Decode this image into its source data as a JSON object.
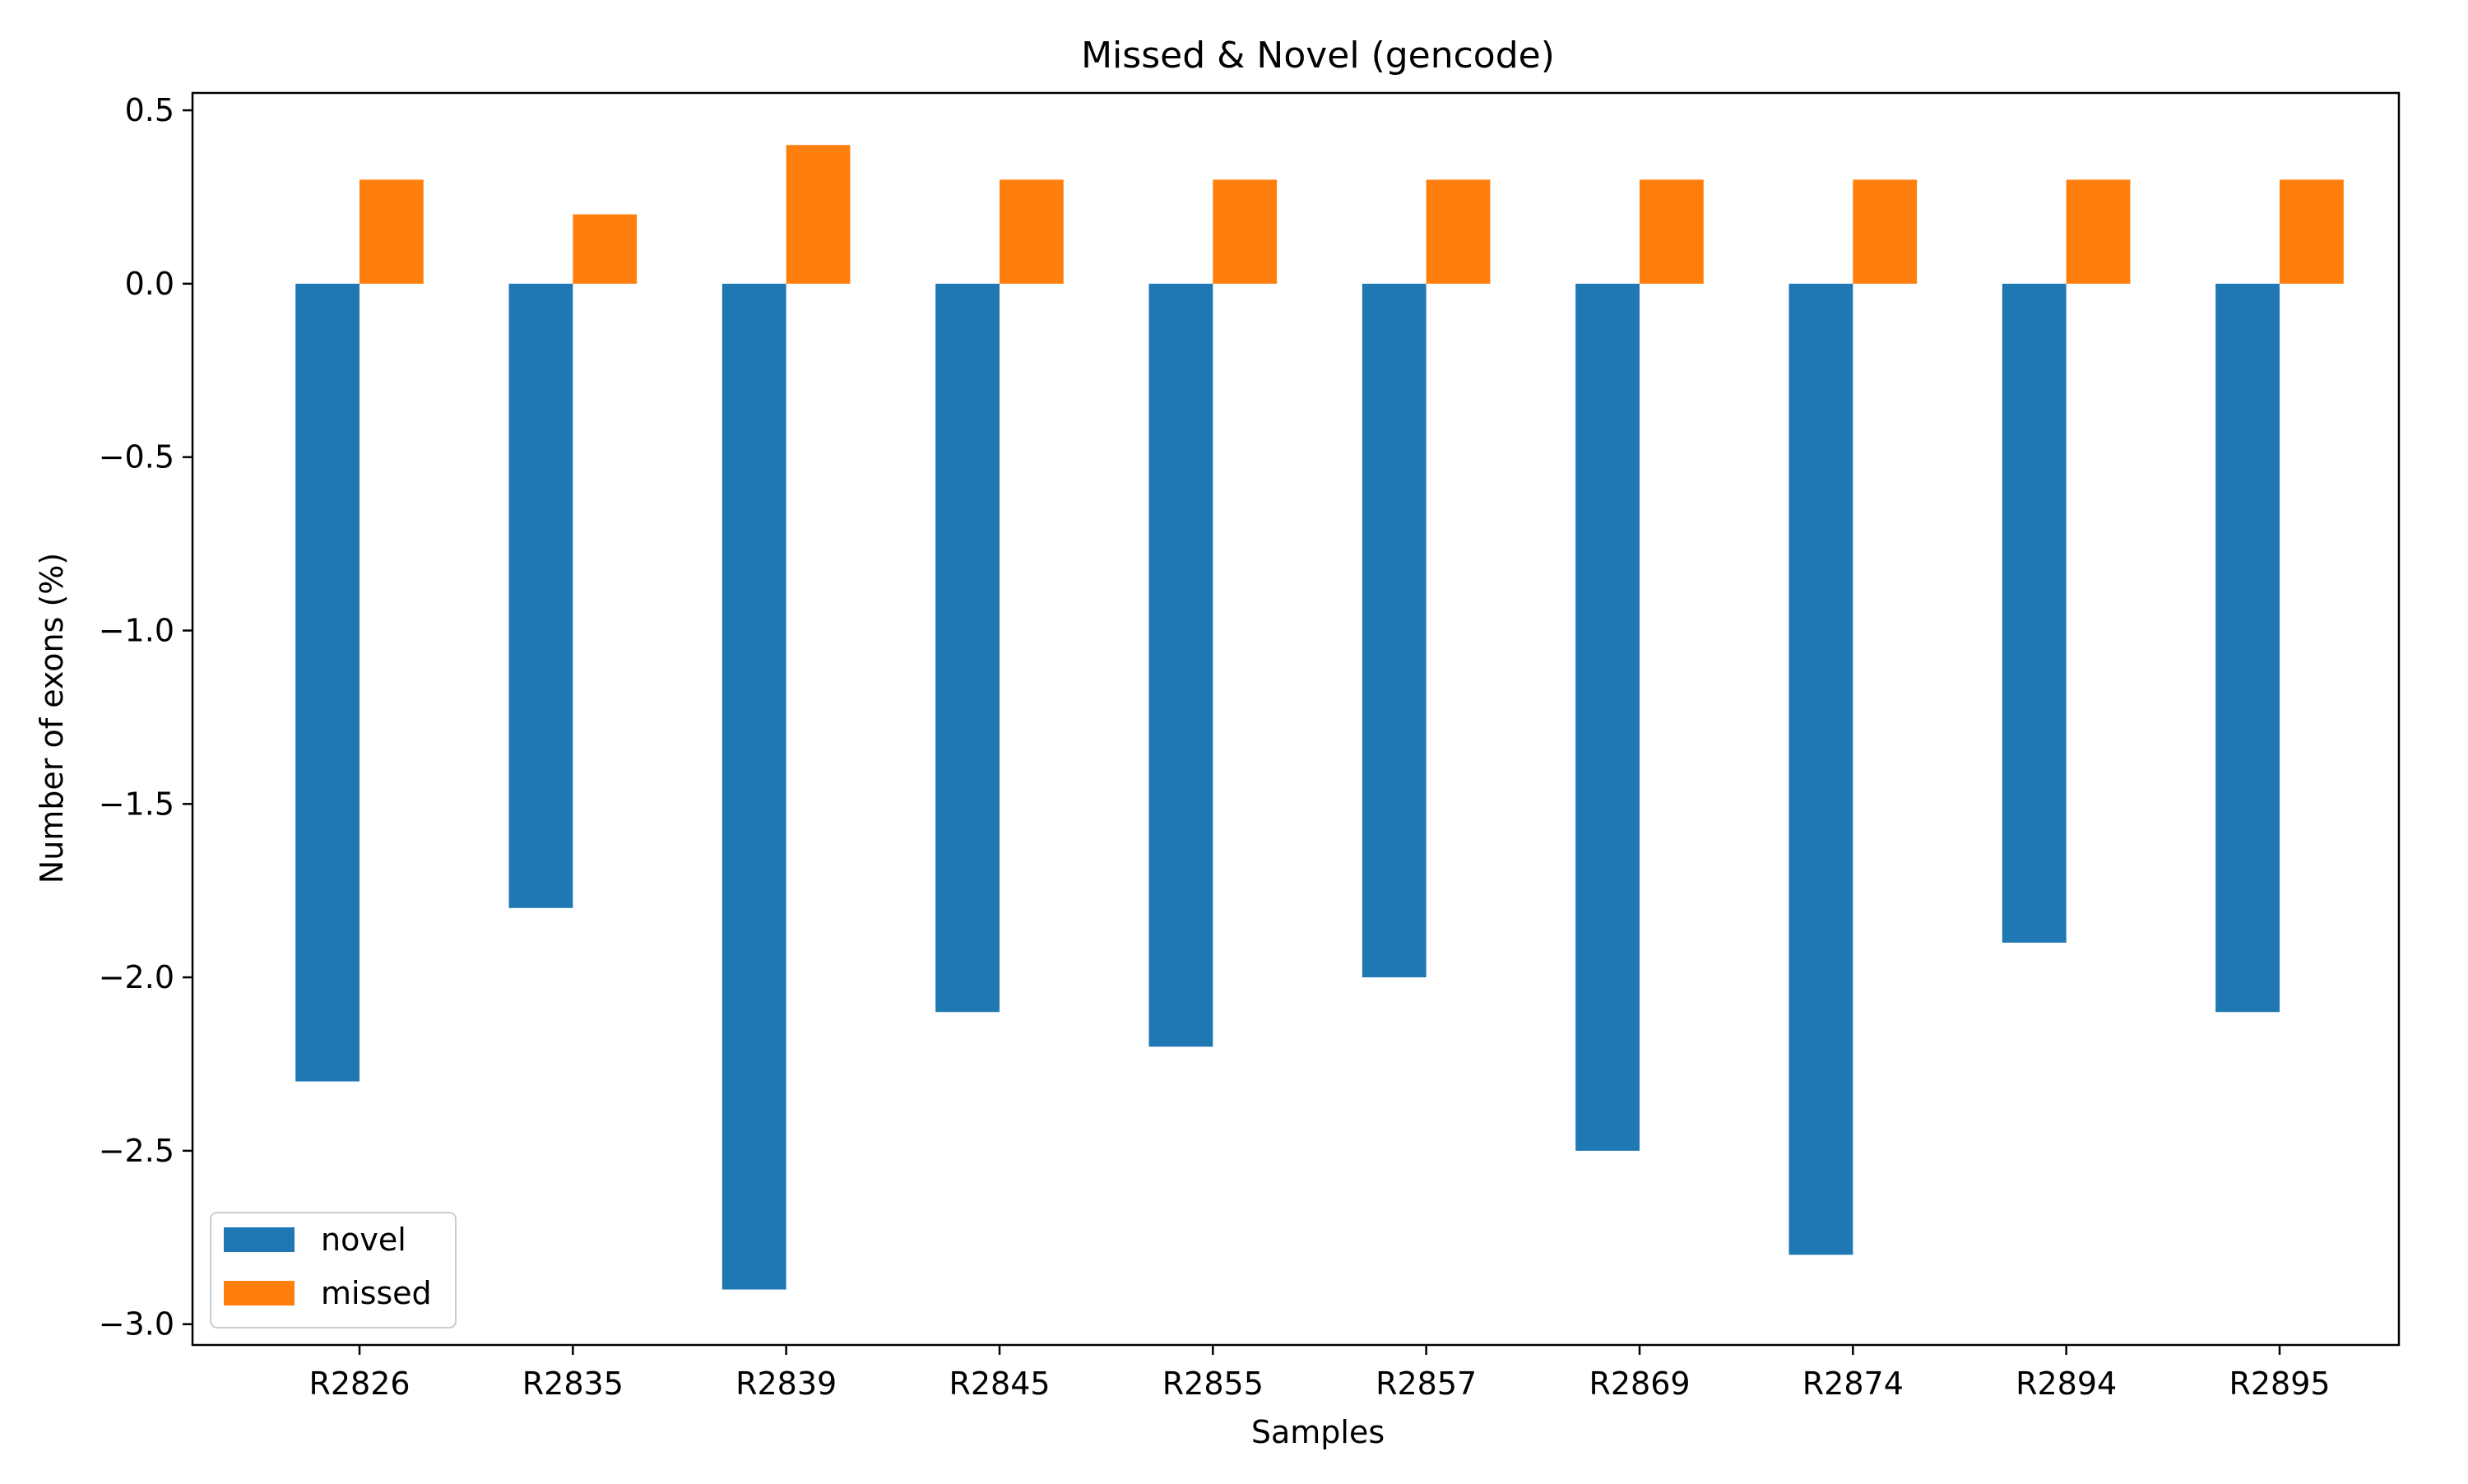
{
  "chart_data": {
    "type": "bar",
    "title": "Missed & Novel (gencode)",
    "xlabel": "Samples",
    "ylabel": "Number of exons (%)",
    "categories": [
      "R2826",
      "R2835",
      "R2839",
      "R2845",
      "R2855",
      "R2857",
      "R2869",
      "R2874",
      "R2894",
      "R2895"
    ],
    "series": [
      {
        "name": "novel",
        "color": "#1f77b4",
        "values": [
          -2.3,
          -1.8,
          -2.9,
          -2.1,
          -2.2,
          -2.0,
          -2.5,
          -2.8,
          -1.9,
          -2.1
        ]
      },
      {
        "name": "missed",
        "color": "#ff7f0e",
        "values": [
          0.3,
          0.2,
          0.4,
          0.3,
          0.3,
          0.3,
          0.3,
          0.3,
          0.3,
          0.3
        ]
      }
    ],
    "ylim": [
      -3.06,
      0.5
    ],
    "yticks": [
      0.5,
      0.0,
      -0.5,
      -1.0,
      -1.5,
      -2.0,
      -2.5,
      -3.0
    ],
    "ytick_labels": [
      "0.5",
      "0.0",
      "−0.5",
      "−1.0",
      "−1.5",
      "−2.0",
      "−2.5",
      "−3.0"
    ],
    "grid": false,
    "legend_position": "lower-left"
  }
}
